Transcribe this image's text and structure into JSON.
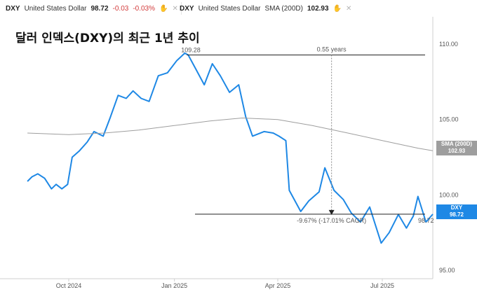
{
  "legend": {
    "chip1": {
      "symbol": "DXY",
      "name": "United States Dollar",
      "last": "98.72",
      "change": "-0.03",
      "change_pct": "-0.03%"
    },
    "chip2": {
      "symbol": "DXY",
      "name": "United States Dollar",
      "indicator": "SMA (200D)",
      "value": "102.93"
    }
  },
  "chart_data": {
    "type": "line",
    "title": "달러 인덱스(DXY)의 최근 1년 추이",
    "x_ticks": [
      "Oct 2024",
      "Jan 2025",
      "Apr 2025",
      "Jul 2025"
    ],
    "y_ticks": [
      "95.00",
      "100.00",
      "105.00",
      "110.00"
    ],
    "ylim": [
      94.5,
      111.8
    ],
    "series": [
      {
        "name": "DXY",
        "color": "#1e88e5",
        "x_dates": [
          "2024-08-26",
          "2024-08-30",
          "2024-09-04",
          "2024-09-10",
          "2024-09-16",
          "2024-09-20",
          "2024-09-25",
          "2024-09-30",
          "2024-10-04",
          "2024-10-10",
          "2024-10-17",
          "2024-10-23",
          "2024-10-31",
          "2024-11-06",
          "2024-11-13",
          "2024-11-20",
          "2024-11-26",
          "2024-12-03",
          "2024-12-10",
          "2024-12-18",
          "2024-12-26",
          "2025-01-03",
          "2025-01-10",
          "2025-01-13",
          "2025-01-20",
          "2025-01-27",
          "2025-02-03",
          "2025-02-10",
          "2025-02-18",
          "2025-02-26",
          "2025-03-04",
          "2025-03-10",
          "2025-03-20",
          "2025-03-28",
          "2025-04-02",
          "2025-04-08",
          "2025-04-11",
          "2025-04-21",
          "2025-04-28",
          "2025-05-07",
          "2025-05-12",
          "2025-05-20",
          "2025-05-28",
          "2025-06-04",
          "2025-06-12",
          "2025-06-20",
          "2025-06-30",
          "2025-07-07",
          "2025-07-15",
          "2025-07-22",
          "2025-07-28",
          "2025-08-01",
          "2025-08-08",
          "2025-08-14"
        ],
        "values": [
          100.9,
          101.2,
          101.4,
          101.1,
          100.4,
          100.7,
          100.4,
          100.7,
          102.5,
          102.9,
          103.5,
          104.2,
          103.9,
          105.1,
          106.6,
          106.4,
          106.9,
          106.4,
          106.2,
          107.9,
          108.1,
          108.9,
          109.4,
          109.28,
          108.3,
          107.3,
          108.7,
          107.9,
          106.8,
          107.3,
          105.2,
          103.9,
          104.2,
          104.1,
          103.9,
          103.6,
          100.3,
          98.9,
          99.6,
          100.2,
          101.8,
          100.3,
          99.7,
          98.8,
          98.2,
          99.2,
          96.8,
          97.5,
          98.7,
          97.8,
          98.6,
          99.9,
          98.2,
          98.72
        ]
      },
      {
        "name": "SMA (200D)",
        "color": "#9e9e9e",
        "x_dates": [
          "2024-08-26",
          "2024-10-01",
          "2024-11-01",
          "2024-12-01",
          "2025-01-01",
          "2025-02-01",
          "2025-03-01",
          "2025-04-01",
          "2025-05-01",
          "2025-06-01",
          "2025-07-01",
          "2025-08-01",
          "2025-08-14"
        ],
        "values": [
          104.1,
          104.0,
          104.1,
          104.3,
          104.6,
          104.9,
          105.1,
          105.0,
          104.6,
          104.1,
          103.6,
          103.1,
          102.93
        ]
      }
    ],
    "annotations": {
      "peak_label": "109.28",
      "duration_label": "0.55 years",
      "change_label": "-9.67% (-17.01% CAGR)",
      "end_label": "98.72"
    },
    "right_tags": [
      {
        "name": "SMA (200D)",
        "value": "102.93",
        "color": "#9e9e9e"
      },
      {
        "name": "DXY",
        "value": "98.72",
        "color": "#1e88e5"
      }
    ]
  }
}
